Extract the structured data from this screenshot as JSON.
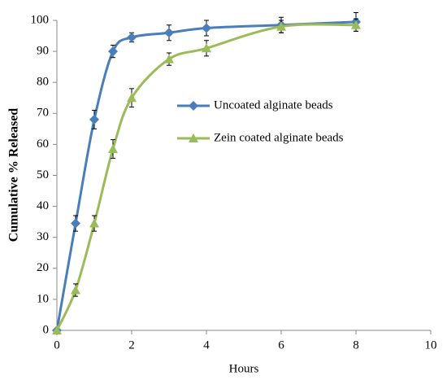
{
  "chart_data": {
    "type": "line",
    "x_label": "Hours",
    "y_label": "Cumulative % Released",
    "x": [
      0,
      0.5,
      1,
      1.5,
      2,
      3,
      4,
      6,
      8
    ],
    "series": [
      {
        "name": "Uncoated alginate beads",
        "color": "#4a7ebb",
        "marker": "diamond",
        "values": [
          0,
          34.5,
          68,
          90,
          94.5,
          96,
          97.5,
          98.5,
          99.5
        ],
        "errors": [
          0,
          2.5,
          3,
          2,
          1.5,
          2.5,
          2.5,
          2.5,
          3
        ]
      },
      {
        "name": "Zein coated alginate beads",
        "color": "#9bbb59",
        "marker": "triangle",
        "values": [
          0,
          13,
          34.5,
          58.5,
          75,
          87.5,
          91,
          98,
          98.5
        ],
        "errors": [
          0,
          2,
          2.5,
          3,
          3,
          2,
          2.5,
          2,
          2
        ]
      }
    ],
    "xlim": [
      0,
      10
    ],
    "xticks": [
      0,
      2,
      4,
      6,
      8,
      10
    ],
    "ylim": [
      0,
      100
    ],
    "yticks": [
      0,
      10,
      20,
      30,
      40,
      50,
      60,
      70,
      80,
      90,
      100
    ],
    "grid": false,
    "legend": "center"
  }
}
